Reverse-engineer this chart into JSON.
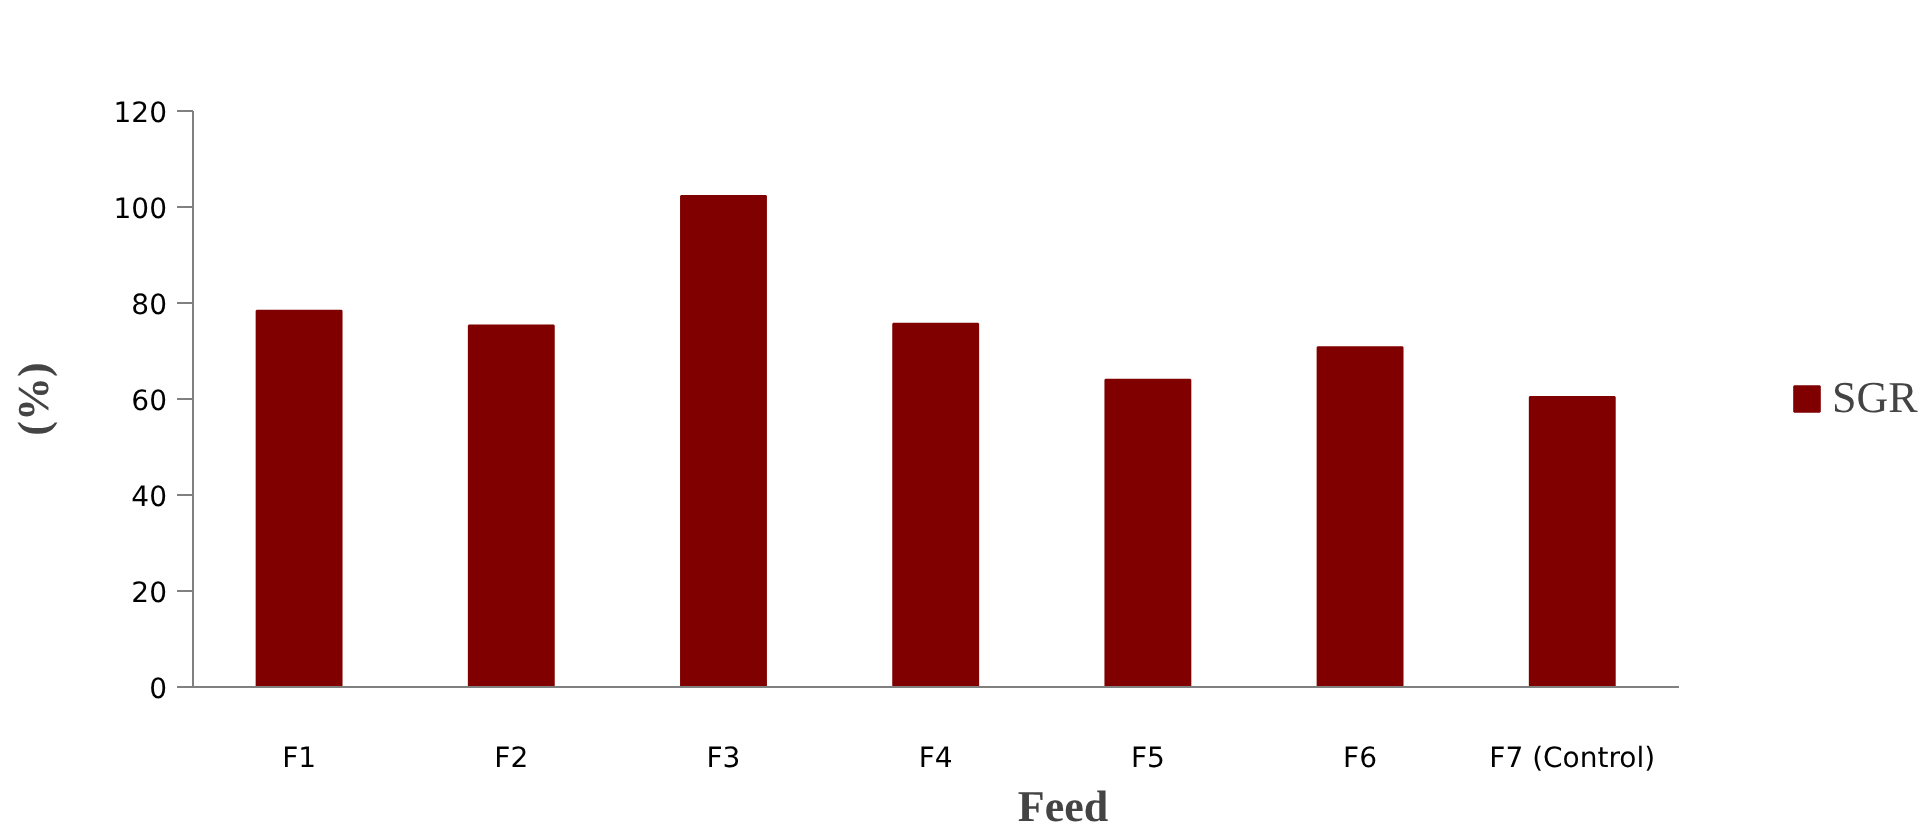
{
  "chart_data": {
    "type": "bar",
    "categories": [
      "F1",
      "F2",
      "F3",
      "F4",
      "F5",
      "F6",
      "F7 (Control)"
    ],
    "series": [
      {
        "name": "SGR",
        "color": "#800000",
        "values": [
          78.4,
          75.3,
          102.3,
          75.7,
          64.0,
          70.8,
          60.4
        ]
      }
    ],
    "xlabel": "Feed",
    "ylabel": "(%)",
    "ylim": [
      0,
      120
    ],
    "yticks": [
      0,
      20,
      40,
      60,
      80,
      100,
      120
    ],
    "grid": false,
    "legend": "right"
  }
}
